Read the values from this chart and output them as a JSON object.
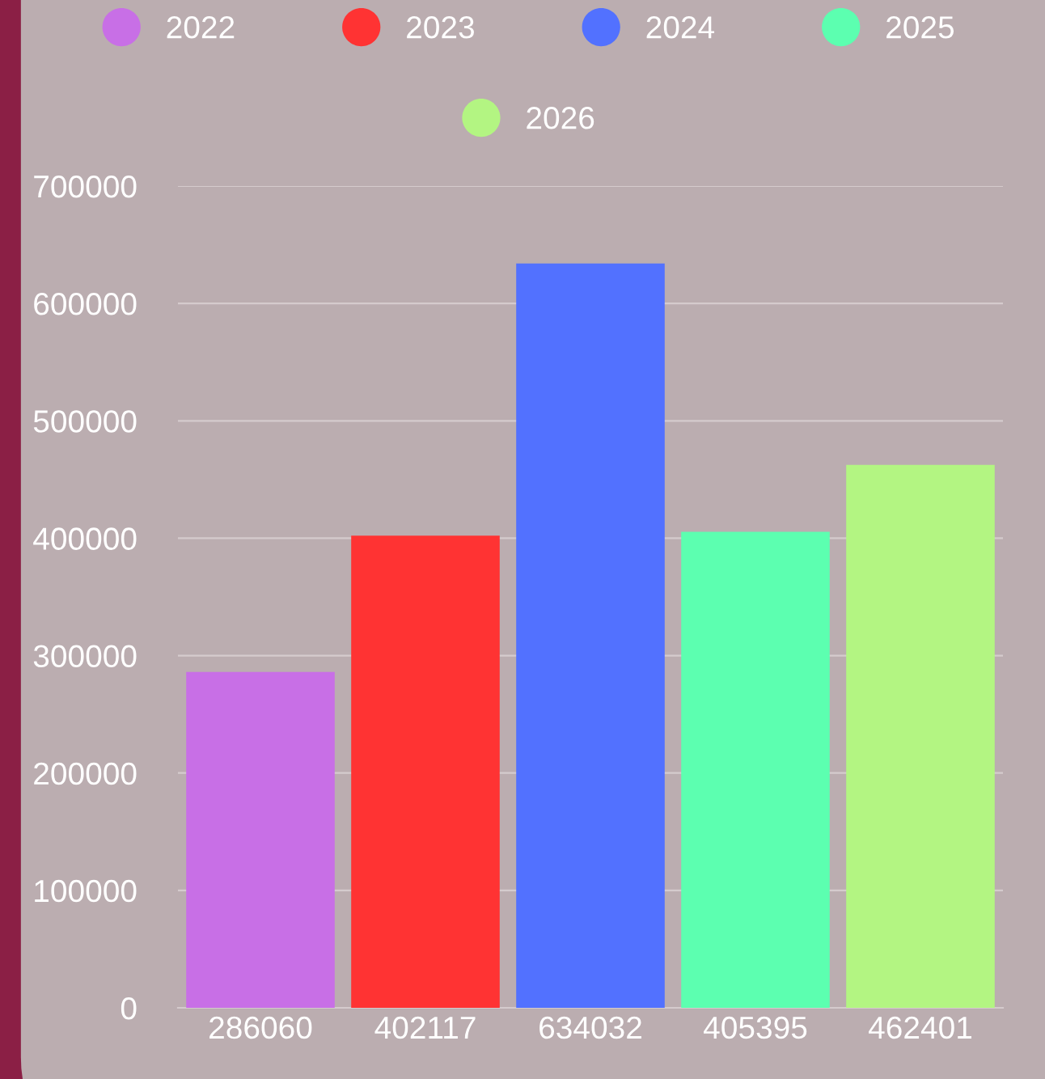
{
  "chart_data": {
    "type": "bar",
    "categories": [
      "286060",
      "402117",
      "634032",
      "405395",
      "462401"
    ],
    "series": [
      {
        "name": "2022",
        "color": "#c86fe6",
        "values": [
          286060,
          null,
          null,
          null,
          null
        ]
      },
      {
        "name": "2023",
        "color": "#ff3333",
        "values": [
          null,
          402117,
          null,
          null,
          null
        ]
      },
      {
        "name": "2024",
        "color": "#5271ff",
        "values": [
          null,
          null,
          634032,
          null,
          null
        ]
      },
      {
        "name": "2025",
        "color": "#5cffb0",
        "values": [
          null,
          null,
          null,
          405395,
          null
        ]
      },
      {
        "name": "2026",
        "color": "#b3f582",
        "values": [
          null,
          null,
          null,
          null,
          462401
        ]
      }
    ],
    "ylim": [
      0,
      700000
    ],
    "yticks": [
      0,
      100000,
      200000,
      300000,
      400000,
      500000,
      600000,
      700000
    ],
    "grid": "y",
    "legend": "top"
  }
}
